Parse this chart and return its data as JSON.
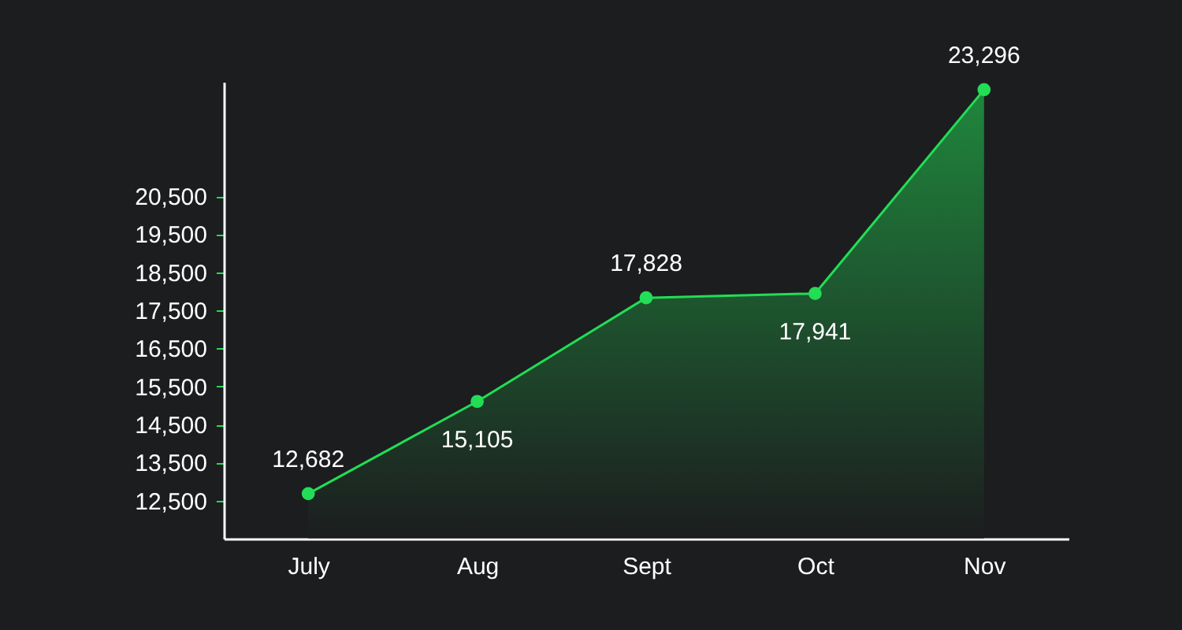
{
  "chart_data": {
    "type": "area",
    "categories": [
      "July",
      "Aug",
      "Sept",
      "Oct",
      "Nov"
    ],
    "series": [
      {
        "color": "#22dd55",
        "values": [
          12682,
          15105,
          17828,
          17941,
          23296
        ],
        "value_labels": [
          "12,682",
          "15,105",
          "17,828",
          "17,941",
          "23,296"
        ]
      }
    ],
    "ylim": [
      11500,
      23500
    ],
    "yticks": [
      {
        "value": 12500,
        "label": "12,500"
      },
      {
        "value": 13500,
        "label": "13,500"
      },
      {
        "value": 14500,
        "label": "14,500"
      },
      {
        "value": 15500,
        "label": "15,500"
      },
      {
        "value": 16500,
        "label": "16,500"
      },
      {
        "value": 17500,
        "label": "17,500"
      },
      {
        "value": 18500,
        "label": "18,500"
      },
      {
        "value": 19500,
        "label": "19,500"
      },
      {
        "value": 20500,
        "label": "20,500"
      }
    ],
    "marker": "circle",
    "grid": false
  }
}
